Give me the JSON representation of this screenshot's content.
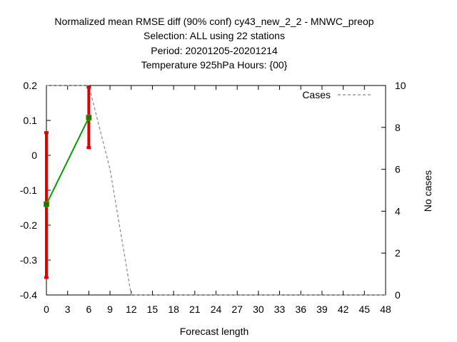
{
  "chart_data": {
    "type": "line",
    "title_lines": [
      "Normalized mean RMSE diff (90% conf) cy43_new_2_2 - MNWC_preop",
      "Selection: ALL using    22 stations",
      "Period: 20201205-20201214",
      "Temperature 925hPa   Hours: {00}"
    ],
    "xlabel": "Forecast length",
    "ylabel": "",
    "y2label": "No cases",
    "xlim": [
      0,
      48
    ],
    "ylim": [
      -0.4,
      0.2
    ],
    "y2lim": [
      0,
      10
    ],
    "x_ticks": [
      "0",
      "3",
      "6",
      "9",
      "12",
      "15",
      "18",
      "21",
      "24",
      "27",
      "30",
      "33",
      "36",
      "39",
      "42",
      "45",
      "48"
    ],
    "y_ticks": [
      "0.2",
      "0.1",
      "0",
      "-0.1",
      "-0.2",
      "-0.3",
      "-0.4"
    ],
    "y2_ticks": [
      "10",
      "8",
      "6",
      "4",
      "2",
      "0"
    ],
    "grid": false,
    "legend_position": "top-right",
    "series": [
      {
        "name": "",
        "color": "#00a000",
        "x": [
          0,
          6
        ],
        "y": [
          -0.14,
          0.108
        ],
        "error_low": [
          -0.35,
          0.022
        ],
        "error_high": [
          0.065,
          0.195
        ],
        "error_color": "#e00000",
        "marker_color": "#008000"
      },
      {
        "name": "Cases",
        "axis": "y2",
        "style": "dashed",
        "color": "#888888",
        "x": [
          0,
          3,
          6,
          9,
          12,
          15,
          18,
          21,
          24,
          27,
          30,
          33,
          36,
          39,
          42,
          45,
          48
        ],
        "y": [
          10,
          10,
          10,
          6,
          0,
          0,
          0,
          0,
          0,
          0,
          0,
          0,
          0,
          0,
          0,
          0,
          0
        ]
      }
    ]
  }
}
